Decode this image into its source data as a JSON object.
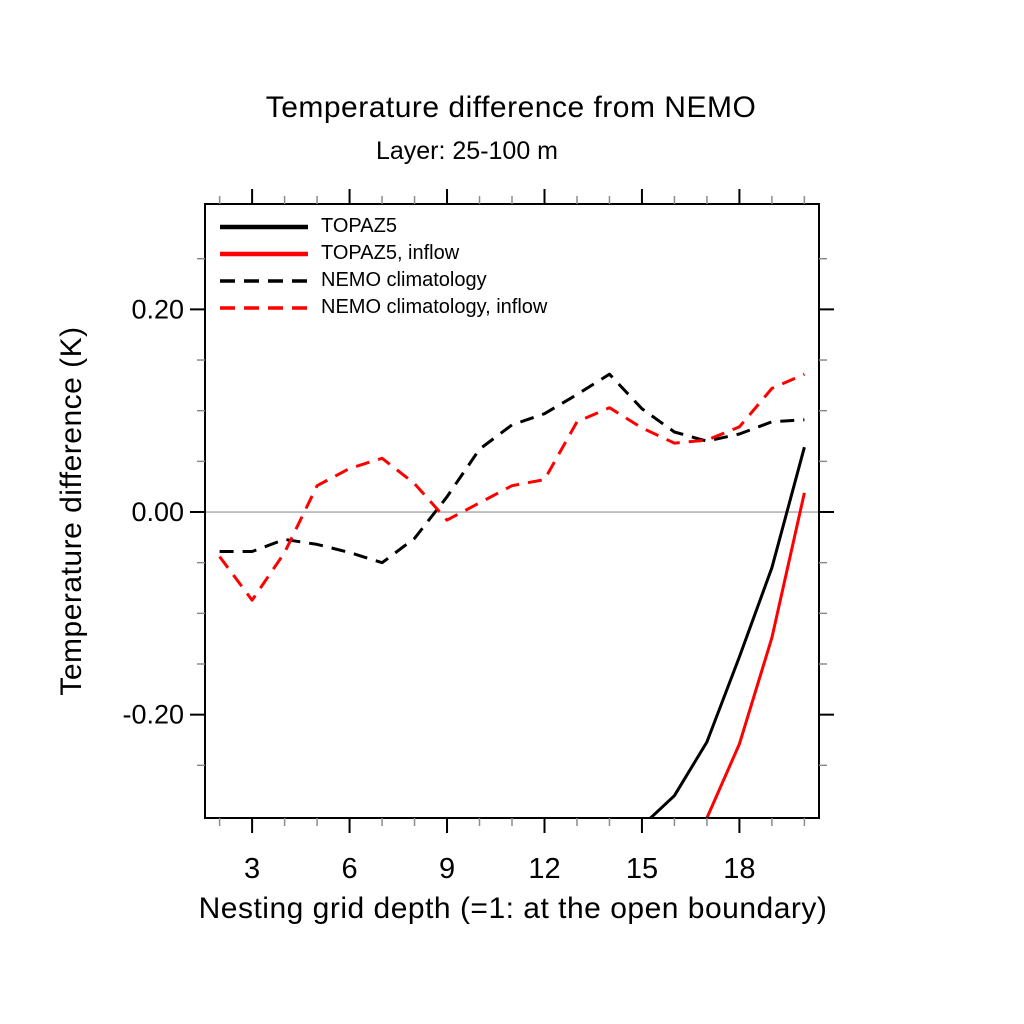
{
  "chart_data": {
    "type": "line",
    "title": "Temperature difference from NEMO",
    "subtitle": "Layer: 25-100 m",
    "xlabel": "Nesting grid depth (=1: at the open boundary)",
    "ylabel": "Temperature difference (K)",
    "xlim": [
      1.55,
      20.45
    ],
    "ylim": [
      -0.302,
      0.304
    ],
    "x": [
      2,
      3,
      4,
      5,
      6,
      7,
      8,
      9,
      10,
      11,
      12,
      13,
      14,
      15,
      16,
      17,
      18,
      19,
      20
    ],
    "x_major_ticks": [
      3,
      6,
      9,
      12,
      15,
      18
    ],
    "x_major_labels": [
      "3",
      "6",
      "9",
      "12",
      "15",
      "18"
    ],
    "x_minor_ticks": [
      2,
      4,
      5,
      7,
      8,
      10,
      11,
      13,
      14,
      16,
      17,
      19,
      20
    ],
    "y_major_ticks": [
      -0.2,
      0.0,
      0.2
    ],
    "y_major_labels": [
      "-0.20",
      "0.00",
      "0.20"
    ],
    "y_minor_ticks": [
      -0.25,
      -0.15,
      -0.1,
      -0.05,
      0.05,
      0.1,
      0.15,
      0.25
    ],
    "zero_line": true,
    "grid": false,
    "legend_position": "top-left-inside",
    "colors": {
      "axis": "#000000",
      "minor_tick": "#8c8c8c",
      "zero_line": "#b2b2b2",
      "black_series": "#000000",
      "red_series": "#ff0000"
    },
    "series": [
      {
        "name": "TOPAZ5",
        "color": "#000000",
        "style": "solid",
        "values": [
          null,
          null,
          null,
          null,
          null,
          null,
          null,
          null,
          null,
          null,
          null,
          null,
          null,
          -0.31,
          -0.28,
          -0.227,
          -0.143,
          -0.055,
          0.064
        ]
      },
      {
        "name": "TOPAZ5, inflow",
        "color": "#ff0000",
        "style": "solid",
        "values": [
          null,
          null,
          null,
          null,
          null,
          null,
          null,
          null,
          null,
          null,
          null,
          null,
          null,
          null,
          -0.38,
          -0.302,
          -0.229,
          -0.124,
          0.019
        ]
      },
      {
        "name": "NEMO climatology",
        "color": "#000000",
        "style": "dashed",
        "values": [
          -0.039,
          -0.039,
          -0.027,
          -0.032,
          -0.04,
          -0.05,
          -0.026,
          0.015,
          0.062,
          0.086,
          0.097,
          0.116,
          0.136,
          0.102,
          0.079,
          0.07,
          0.077,
          0.089,
          0.091
        ]
      },
      {
        "name": "NEMO climatology, inflow",
        "color": "#ff0000",
        "style": "dashed",
        "values": [
          -0.044,
          -0.087,
          -0.04,
          0.026,
          0.043,
          0.053,
          0.028,
          -0.008,
          0.009,
          0.026,
          0.032,
          0.089,
          0.103,
          0.083,
          0.068,
          0.071,
          0.084,
          0.122,
          0.136
        ]
      }
    ]
  }
}
